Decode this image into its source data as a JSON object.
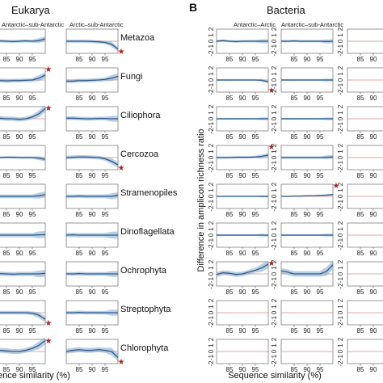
{
  "figure": {
    "panel_a": {
      "letter": "",
      "title": "Eukarya"
    },
    "panel_b": {
      "letter": "B",
      "title": "Bacteria"
    }
  },
  "chart_data": [
    {
      "panel": "A",
      "type": "line",
      "title": "Eukarya",
      "xlabel": "ence similarity (%)",
      "ylabel": "",
      "xlim": [
        80,
        100
      ],
      "ylim": [
        -2,
        2
      ],
      "x_ticks": [
        "85",
        "90",
        "95"
      ],
      "y_ticks": [],
      "columns": [
        "Antarctic–sub-Antarctic",
        "Arctic–sub-Antarctic"
      ],
      "rows": [
        "Metazoa",
        "Fungi",
        "Ciliophora",
        "Cercozoa",
        "Stramenopiles",
        "Dinoflagellata",
        "Ochrophyta",
        "Streptophyta",
        "Chlorophyta"
      ],
      "x": [
        80,
        82.5,
        85,
        87.5,
        90,
        92.5,
        95,
        97.5,
        100
      ],
      "series": [
        {
          "row": 0,
          "col": 0,
          "values": [
            0,
            0.05,
            0,
            -0.05,
            0,
            0.05,
            0,
            0.1,
            0.4
          ],
          "band": 0.25,
          "star": false
        },
        {
          "row": 0,
          "col": 1,
          "values": [
            0,
            0,
            0,
            0,
            -0.05,
            -0.1,
            -0.2,
            -0.5,
            -1.3
          ],
          "band": 0.25,
          "star": true
        },
        {
          "row": 1,
          "col": 0,
          "values": [
            -0.1,
            -0.1,
            -0.15,
            -0.1,
            -0.1,
            -0.05,
            0,
            0.3,
            0.8
          ],
          "band": 0.3,
          "star": true
        },
        {
          "row": 1,
          "col": 1,
          "values": [
            -0.2,
            -0.2,
            -0.1,
            -0.1,
            -0.05,
            0,
            0.1,
            0.3,
            0.6
          ],
          "band": 0.3,
          "star": false
        },
        {
          "row": 2,
          "col": 0,
          "values": [
            0,
            0.1,
            0,
            0,
            -0.1,
            0,
            0.3,
            0.8,
            1.7
          ],
          "band": 0.35,
          "star": true
        },
        {
          "row": 2,
          "col": 1,
          "values": [
            0.1,
            0.1,
            0.05,
            0,
            0,
            0.05,
            0.05,
            0,
            0
          ],
          "band": 0.3,
          "star": false
        },
        {
          "row": 3,
          "col": 0,
          "values": [
            0,
            0,
            0.05,
            0.05,
            0,
            0,
            0,
            -0.1,
            -0.3
          ],
          "band": 0.2,
          "star": false
        },
        {
          "row": 3,
          "col": 1,
          "values": [
            0,
            0.05,
            0.1,
            0.1,
            0.05,
            0,
            -0.2,
            -0.6,
            -1.2
          ],
          "band": 0.3,
          "star": true
        },
        {
          "row": 4,
          "col": 0,
          "values": [
            0,
            0,
            0,
            0,
            0,
            0,
            0,
            0.1,
            0.3
          ],
          "band": 0.3,
          "star": false
        },
        {
          "row": 4,
          "col": 1,
          "values": [
            0,
            0,
            0.05,
            0,
            0,
            0,
            0,
            0,
            0.2
          ],
          "band": 0.3,
          "star": false
        },
        {
          "row": 5,
          "col": 0,
          "values": [
            0,
            0,
            0,
            0,
            0,
            0,
            0,
            0.05,
            0.1
          ],
          "band": 0.35,
          "star": false
        },
        {
          "row": 5,
          "col": 1,
          "values": [
            0,
            0.05,
            0,
            0,
            0,
            0,
            0,
            0,
            0
          ],
          "band": 0.35,
          "star": false
        },
        {
          "row": 6,
          "col": 0,
          "values": [
            0,
            0.05,
            0,
            -0.05,
            0,
            0,
            0,
            0,
            0.1
          ],
          "band": 0.35,
          "star": false
        },
        {
          "row": 6,
          "col": 1,
          "values": [
            0,
            0,
            0.05,
            0,
            0,
            0,
            0,
            0,
            0
          ],
          "band": 0.3,
          "star": false
        },
        {
          "row": 7,
          "col": 0,
          "values": [
            0,
            0,
            0,
            0,
            0,
            0,
            -0.1,
            -0.4,
            -1.1
          ],
          "band": 0.3,
          "star": true
        },
        {
          "row": 7,
          "col": 1,
          "values": [
            0,
            0,
            0.05,
            0,
            0,
            0,
            0,
            0,
            0
          ],
          "band": 0.3,
          "star": false
        },
        {
          "row": 8,
          "col": 0,
          "values": [
            0.1,
            0.2,
            0.1,
            0,
            0,
            0.2,
            0.5,
            1.0,
            1.8
          ],
          "band": 0.4,
          "star": true
        },
        {
          "row": 8,
          "col": 1,
          "values": [
            0,
            0.2,
            0.3,
            0.2,
            0.2,
            0.3,
            0.2,
            0,
            -1.0
          ],
          "band": 0.4,
          "star": true
        }
      ]
    },
    {
      "panel": "B",
      "type": "line",
      "title": "Bacteria",
      "xlabel": "Sequence similarity (%)",
      "ylabel": "Difference in amplicon richness ratio",
      "xlim": [
        80,
        100
      ],
      "ylim": [
        -2,
        2
      ],
      "x_ticks": [
        "85",
        "90",
        "95"
      ],
      "y_ticks": [
        "-2",
        "-1",
        "0",
        "1",
        "2"
      ],
      "columns": [
        "Antarctic–Arctic",
        "Antarctic–sub-Antarctic",
        ""
      ],
      "rows": [
        "",
        "",
        "",
        "",
        "",
        "",
        "",
        "",
        ""
      ],
      "x": [
        80,
        82.5,
        85,
        87.5,
        90,
        92.5,
        95,
        97.5,
        100
      ],
      "series": [
        {
          "row": 0,
          "col": 0,
          "values": [
            0,
            0.1,
            0,
            -0.05,
            0,
            0,
            0,
            0,
            0
          ],
          "band": 0.2,
          "star": false
        },
        {
          "row": 0,
          "col": 1,
          "values": [
            0,
            0,
            0.05,
            0,
            0,
            0,
            0,
            -0.05,
            0
          ],
          "band": 0.2,
          "star": false
        },
        {
          "row": 1,
          "col": 0,
          "values": [
            0,
            0,
            0,
            0,
            0,
            0,
            0,
            -0.05,
            -0.3
          ],
          "band": 0.15,
          "star": true
        },
        {
          "row": 1,
          "col": 1,
          "values": [
            0,
            0,
            0,
            0,
            0,
            0,
            0,
            0,
            0
          ],
          "band": 0.15,
          "star": false
        },
        {
          "row": 2,
          "col": 0,
          "values": [
            0,
            0,
            0,
            0,
            0,
            0,
            0,
            0,
            0
          ],
          "band": 0.15,
          "star": false
        },
        {
          "row": 2,
          "col": 1,
          "values": [
            0,
            0,
            0,
            0,
            0,
            0,
            0,
            0,
            0
          ],
          "band": 0.15,
          "star": false
        },
        {
          "row": 3,
          "col": 0,
          "values": [
            0,
            0,
            0,
            0.05,
            0.05,
            0.05,
            0.1,
            0.2,
            0.4
          ],
          "band": 0.2,
          "star": true
        },
        {
          "row": 3,
          "col": 1,
          "values": [
            0,
            0,
            0,
            0,
            0,
            0,
            0,
            0.05,
            0.1
          ],
          "band": 0.2,
          "star": false
        },
        {
          "row": 4,
          "col": 0,
          "values": [
            0,
            0,
            0,
            0,
            0,
            0,
            0,
            0,
            0
          ],
          "band": 0.1,
          "star": false
        },
        {
          "row": 4,
          "col": 1,
          "values": [
            0,
            0,
            0.05,
            0.05,
            0.1,
            0.1,
            0.15,
            0.2,
            0.3
          ],
          "band": 0.1,
          "star": true
        },
        {
          "row": 5,
          "col": 0,
          "values": [
            0,
            0,
            0,
            0,
            0,
            0,
            0,
            0,
            0
          ],
          "band": 0.15,
          "star": false
        },
        {
          "row": 5,
          "col": 1,
          "values": [
            0,
            0,
            0,
            0,
            0,
            0,
            0,
            0,
            0
          ],
          "band": 0.15,
          "star": false
        },
        {
          "row": 6,
          "col": 0,
          "values": [
            -0.1,
            0.2,
            0.1,
            -0.1,
            0,
            0.3,
            0.6,
            1.0,
            1.6
          ],
          "band": 0.4,
          "star": true
        },
        {
          "row": 6,
          "col": 1,
          "values": [
            0.5,
            0.3,
            0,
            0,
            0,
            0,
            0,
            0.4,
            1.5
          ],
          "band": 0.45,
          "star": false
        }
      ],
      "stars": []
    }
  ],
  "styles": {
    "line_color": "#2f5d8a",
    "band_color": "#7fa6cf",
    "band_opacity": 0.55,
    "zero_line_color": "#d48b8b",
    "star_color": "#b22222",
    "frame_color": "#555555"
  }
}
